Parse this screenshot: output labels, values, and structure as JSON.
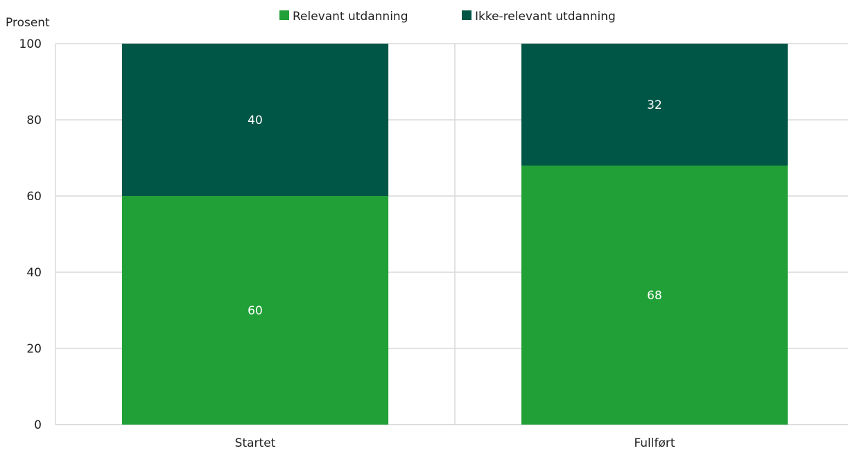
{
  "chart_data": {
    "type": "bar",
    "stacked": true,
    "categories": [
      "Startet",
      "Fullført"
    ],
    "series": [
      {
        "name": "Relevant utdanning",
        "values": [
          60,
          68
        ],
        "color": "#21a038"
      },
      {
        "name": "Ikke-relevant utdanning",
        "values": [
          40,
          32
        ],
        "color": "#005646"
      }
    ],
    "data_labels": [
      [
        "60",
        "68"
      ],
      [
        "40",
        "32"
      ]
    ],
    "ylabel": "Prosent",
    "ylim": [
      0,
      100
    ],
    "yticks": [
      0,
      20,
      40,
      60,
      80,
      100
    ],
    "grid": true,
    "legend_position": "top-center"
  }
}
